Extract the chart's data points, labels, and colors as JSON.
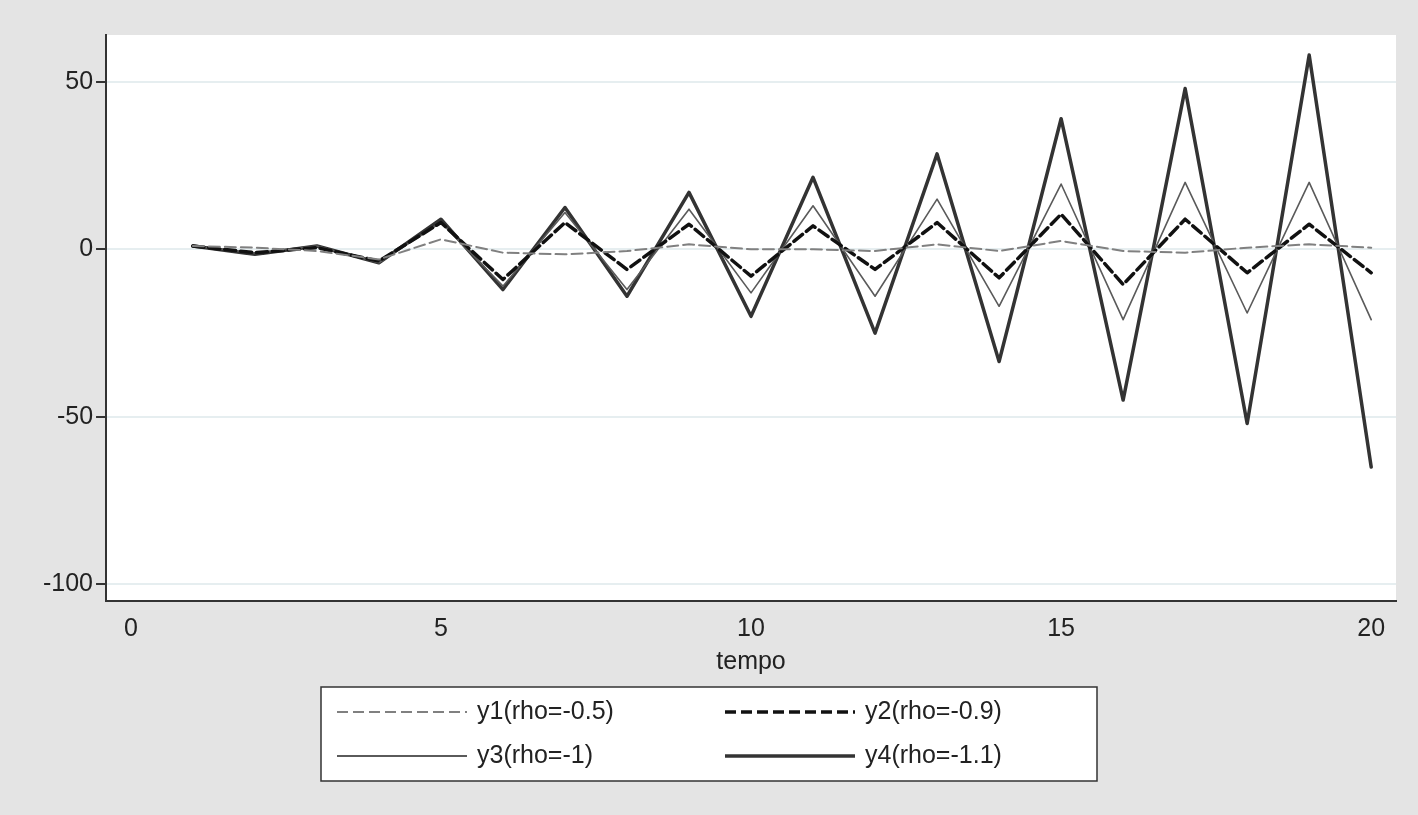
{
  "chart_data": {
    "type": "line",
    "xlabel": "tempo",
    "x": [
      1,
      2,
      3,
      4,
      5,
      6,
      7,
      8,
      9,
      10,
      11,
      12,
      13,
      14,
      15,
      16,
      17,
      18,
      19,
      20
    ],
    "xlim": [
      -0.4,
      20.4
    ],
    "xticks": [
      0,
      5,
      10,
      15,
      20
    ],
    "ylim": [
      -105,
      64
    ],
    "yticks": [
      -100,
      -50,
      0,
      50
    ],
    "grid": "y",
    "legend": "bottom",
    "marker": "none",
    "series": [
      {
        "name": "y1(rho=-0.5)",
        "color": "#808080",
        "line_style": "dashed",
        "values": [
          1,
          0.5,
          -0.5,
          -3,
          3,
          -1,
          -1.5,
          -0.5,
          1.5,
          0,
          0,
          -0.5,
          1.5,
          -0.5,
          2.5,
          -0.5,
          -1,
          0.5,
          1.5,
          0.5
        ]
      },
      {
        "name": "y2(rho=-0.9)",
        "color": "#111111",
        "line_style": "dashed",
        "values": [
          1,
          -1,
          0.5,
          -3.5,
          8,
          -9,
          8,
          -6,
          7.5,
          -8,
          7,
          -6,
          8,
          -8.5,
          10.5,
          -10.5,
          9,
          -7,
          7.5,
          -7
        ]
      },
      {
        "name": "y3(rho=-1)",
        "color": "#5a5a5a",
        "line_style": "solid",
        "values": [
          1,
          -1,
          1,
          -4,
          8,
          -11,
          11,
          -12,
          12,
          -13,
          13,
          -14,
          15,
          -17,
          19.5,
          -21,
          20,
          -19,
          20,
          -21
        ]
      },
      {
        "name": "y4(rho=-1.1)",
        "color": "#333333",
        "line_style": "solid",
        "values": [
          1,
          -1.5,
          1,
          -4,
          9,
          -12,
          12.5,
          -14,
          17,
          -20,
          21.5,
          -25,
          28.5,
          -33.5,
          39,
          -45,
          48,
          -52,
          58,
          -65
        ]
      }
    ]
  }
}
